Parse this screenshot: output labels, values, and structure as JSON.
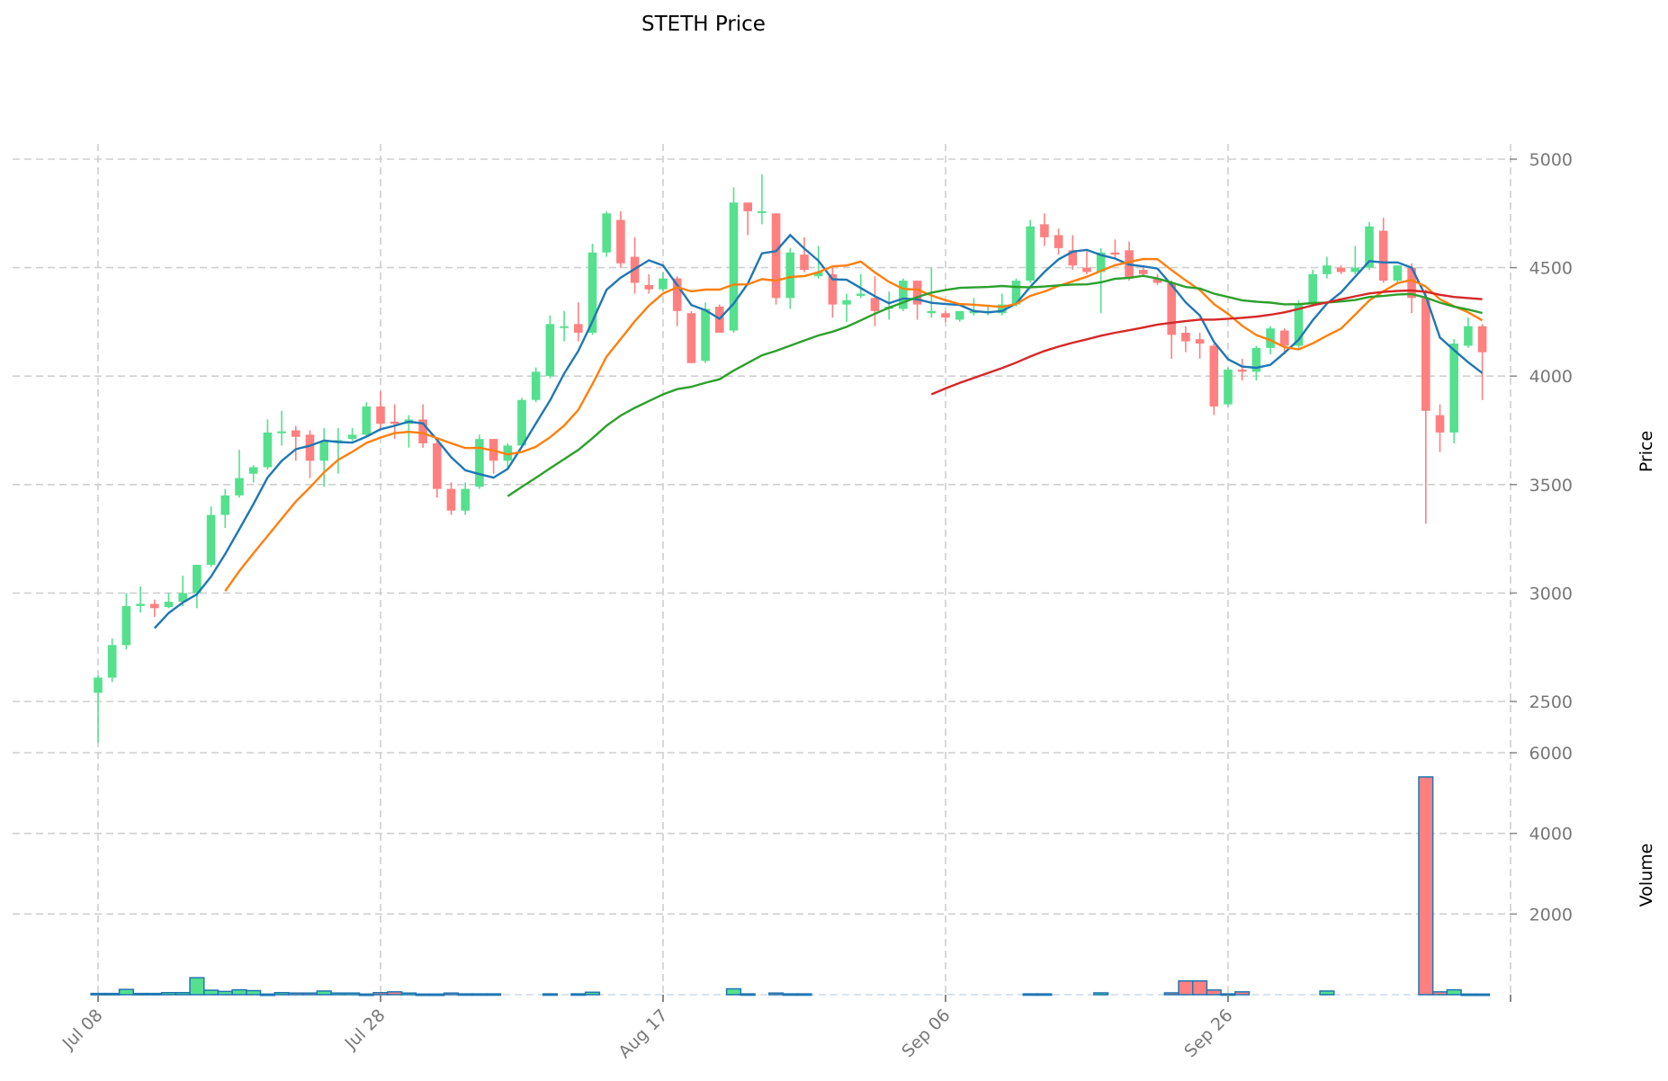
{
  "chart_data": {
    "type": "candlestick",
    "title": "STETH Price",
    "ylabel_price": "Price",
    "ylabel_volume": "Volume",
    "price_ylim": [
      2300,
      5060
    ],
    "price_ticks": [
      2500,
      3000,
      3500,
      4000,
      4500,
      5000
    ],
    "volume_ylim": [
      0,
      6000
    ],
    "volume_ticks": [
      2000,
      4000,
      6000
    ],
    "x_ticks": [
      {
        "index": 0,
        "label": "Jul 08"
      },
      {
        "index": 20,
        "label": "Jul 28"
      },
      {
        "index": 40,
        "label": "Aug 17"
      },
      {
        "index": 60,
        "label": "Sep 06"
      },
      {
        "index": 80,
        "label": "Sep 26"
      },
      {
        "index": 100,
        "label": ""
      }
    ],
    "grid": true,
    "colors": {
      "up": "#55e08e",
      "down": "#ff8080",
      "volume_edge": "#1f77b4",
      "grid": "#cfcfcf"
    },
    "moving_averages": [
      {
        "period": 5,
        "color": "#1f77b4"
      },
      {
        "period": 10,
        "color": "#ff7f0e"
      },
      {
        "period": 30,
        "color": "#2ca02c"
      },
      {
        "period": 60,
        "color": "#d62728"
      }
    ],
    "ohlc": [
      [
        2540,
        2620,
        2310,
        2610
      ],
      [
        2610,
        2790,
        2590,
        2760
      ],
      [
        2760,
        3000,
        2740,
        2940
      ],
      [
        2940,
        3030,
        2910,
        2950
      ],
      [
        2950,
        2970,
        2890,
        2930
      ],
      [
        2935,
        3000,
        2930,
        2960
      ],
      [
        2960,
        3080,
        2940,
        3000
      ],
      [
        3000,
        3130,
        2930,
        3130
      ],
      [
        3130,
        3400,
        3120,
        3360
      ],
      [
        3360,
        3480,
        3300,
        3450
      ],
      [
        3450,
        3660,
        3440,
        3530
      ],
      [
        3550,
        3590,
        3510,
        3580
      ],
      [
        3580,
        3800,
        3570,
        3740
      ],
      [
        3740,
        3840,
        3680,
        3745
      ],
      [
        3750,
        3770,
        3610,
        3720
      ],
      [
        3730,
        3750,
        3530,
        3610
      ],
      [
        3610,
        3760,
        3490,
        3700
      ],
      [
        3700,
        3760,
        3550,
        3705
      ],
      [
        3710,
        3760,
        3700,
        3730
      ],
      [
        3730,
        3880,
        3720,
        3860
      ],
      [
        3860,
        3930,
        3760,
        3780
      ],
      [
        3790,
        3870,
        3710,
        3780
      ],
      [
        3780,
        3820,
        3670,
        3800
      ],
      [
        3800,
        3870,
        3670,
        3690
      ],
      [
        3690,
        3700,
        3440,
        3480
      ],
      [
        3480,
        3510,
        3360,
        3380
      ],
      [
        3380,
        3510,
        3360,
        3480
      ],
      [
        3490,
        3730,
        3480,
        3710
      ],
      [
        3710,
        3710,
        3550,
        3610
      ],
      [
        3610,
        3690,
        3570,
        3680
      ],
      [
        3680,
        3900,
        3670,
        3890
      ],
      [
        3890,
        4040,
        3880,
        4020
      ],
      [
        4000,
        4280,
        3990,
        4240
      ],
      [
        4230,
        4300,
        4160,
        4230
      ],
      [
        4240,
        4340,
        4160,
        4200
      ],
      [
        4200,
        4610,
        4190,
        4570
      ],
      [
        4570,
        4760,
        4550,
        4750
      ],
      [
        4720,
        4760,
        4500,
        4520
      ],
      [
        4550,
        4640,
        4380,
        4430
      ],
      [
        4420,
        4470,
        4380,
        4400
      ],
      [
        4400,
        4480,
        4390,
        4450
      ],
      [
        4450,
        4460,
        4230,
        4300
      ],
      [
        4290,
        4300,
        4060,
        4060
      ],
      [
        4070,
        4340,
        4060,
        4310
      ],
      [
        4320,
        4330,
        4200,
        4200
      ],
      [
        4210,
        4870,
        4200,
        4800
      ],
      [
        4800,
        4800,
        4650,
        4760
      ],
      [
        4760,
        4930,
        4700,
        4760
      ],
      [
        4750,
        4750,
        4330,
        4360
      ],
      [
        4360,
        4590,
        4310,
        4570
      ],
      [
        4560,
        4640,
        4480,
        4490
      ],
      [
        4460,
        4600,
        4450,
        4480
      ],
      [
        4470,
        4500,
        4270,
        4330
      ],
      [
        4330,
        4380,
        4250,
        4350
      ],
      [
        4370,
        4470,
        4360,
        4380
      ],
      [
        4360,
        4460,
        4230,
        4300
      ],
      [
        4310,
        4390,
        4260,
        4320
      ],
      [
        4310,
        4450,
        4300,
        4440
      ],
      [
        4440,
        4440,
        4260,
        4330
      ],
      [
        4290,
        4500,
        4270,
        4300
      ],
      [
        4290,
        4300,
        4250,
        4270
      ],
      [
        4260,
        4300,
        4250,
        4300
      ],
      [
        4290,
        4360,
        4280,
        4300
      ],
      [
        4290,
        4330,
        4280,
        4300
      ],
      [
        4290,
        4380,
        4280,
        4330
      ],
      [
        4330,
        4450,
        4320,
        4440
      ],
      [
        4440,
        4720,
        4430,
        4690
      ],
      [
        4700,
        4750,
        4600,
        4640
      ],
      [
        4650,
        4680,
        4560,
        4590
      ],
      [
        4580,
        4650,
        4490,
        4510
      ],
      [
        4500,
        4580,
        4470,
        4480
      ],
      [
        4480,
        4590,
        4290,
        4570
      ],
      [
        4570,
        4630,
        4540,
        4560
      ],
      [
        4580,
        4620,
        4440,
        4450
      ],
      [
        4490,
        4510,
        4460,
        4470
      ],
      [
        4450,
        4470,
        4420,
        4430
      ],
      [
        4430,
        4440,
        4080,
        4190
      ],
      [
        4200,
        4230,
        4110,
        4160
      ],
      [
        4170,
        4200,
        4080,
        4150
      ],
      [
        4140,
        4150,
        3820,
        3860
      ],
      [
        3870,
        4040,
        3860,
        4030
      ],
      [
        4030,
        4080,
        3980,
        4020
      ],
      [
        4020,
        4140,
        3980,
        4130
      ],
      [
        4130,
        4230,
        4100,
        4220
      ],
      [
        4210,
        4220,
        4100,
        4140
      ],
      [
        4140,
        4350,
        4130,
        4330
      ],
      [
        4330,
        4490,
        4320,
        4470
      ],
      [
        4470,
        4550,
        4450,
        4510
      ],
      [
        4500,
        4510,
        4470,
        4480
      ],
      [
        4480,
        4600,
        4470,
        4500
      ],
      [
        4500,
        4710,
        4490,
        4690
      ],
      [
        4670,
        4730,
        4430,
        4440
      ],
      [
        4440,
        4510,
        4430,
        4510
      ],
      [
        4500,
        4520,
        4290,
        4360
      ],
      [
        4360,
        4400,
        3320,
        3840
      ],
      [
        3820,
        3870,
        3650,
        3740
      ],
      [
        3740,
        4170,
        3690,
        4150
      ],
      [
        4140,
        4270,
        4130,
        4230
      ],
      [
        4230,
        4240,
        3890,
        4110
      ]
    ],
    "volume": [
      30,
      30,
      130,
      30,
      30,
      50,
      50,
      420,
      110,
      80,
      120,
      100,
      15,
      50,
      40,
      40,
      90,
      40,
      40,
      15,
      50,
      70,
      40,
      15,
      15,
      40,
      20,
      20,
      20,
      0,
      0,
      0,
      20,
      0,
      20,
      60,
      0,
      0,
      0,
      0,
      0,
      0,
      0,
      0,
      0,
      145,
      20,
      0,
      40,
      20,
      20,
      0,
      0,
      0,
      0,
      0,
      0,
      0,
      0,
      0,
      0,
      0,
      0,
      0,
      0,
      0,
      20,
      20,
      0,
      0,
      0,
      45,
      0,
      0,
      0,
      0,
      45,
      340,
      340,
      115,
      20,
      70,
      0,
      0,
      0,
      0,
      0,
      90,
      0,
      0,
      0,
      0,
      0,
      0,
      5400,
      70,
      120,
      15,
      15
    ]
  }
}
